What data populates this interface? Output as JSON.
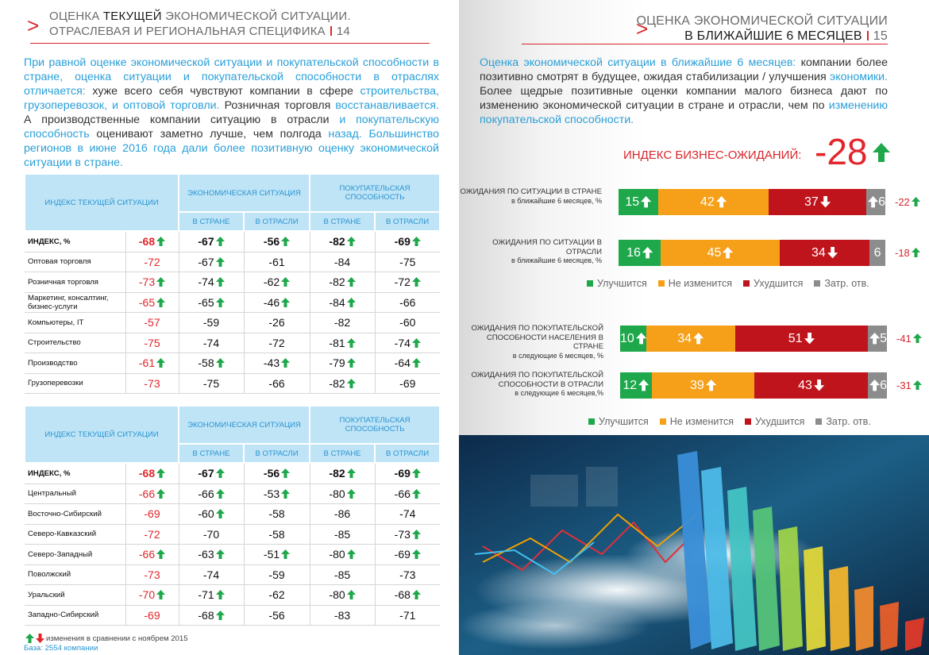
{
  "left_page": {
    "header": {
      "prefix": "ОЦЕНКА",
      "highlight": "ТЕКУЩЕЙ",
      "rest": "ЭКОНОМИЧЕСКОЙ СИТУАЦИИ.",
      "line2": "ОТРАСЛЕВАЯ И РЕГИОНАЛЬНАЯ СПЕЦИФИКА",
      "page_number": "14"
    },
    "intro": [
      {
        "text": "При равной оценке экономической ситуации и покупательской способности в стране, оценка ситуации и покупательской способности в отраслях отличается: ",
        "highlight": true
      },
      {
        "text": "хуже всего себя чувствуют компании в сфере ",
        "highlight": false
      },
      {
        "text": "строительства, грузоперевозок, и оптовой торговли. ",
        "highlight": true
      },
      {
        "text": "Розничная торговля ",
        "highlight": false
      },
      {
        "text": "восстанавливается. ",
        "highlight": true
      },
      {
        "text": " А производственные компании ситуацию в отрасли ",
        "highlight": false
      },
      {
        "text": "и покупательскую способность ",
        "highlight": true
      },
      {
        "text": "оценивают заметно лучше, чем полгода ",
        "highlight": false
      },
      {
        "text": "назад. Большинство регионов в июне 2016 года дали более позитивную оценку экономической ситуации в стране.",
        "highlight": true
      }
    ],
    "tables": [
      {
        "corner": "ИНДЕКС ТЕКУЩЕЙ СИТУАЦИИ",
        "groups": [
          "ЭКОНОМИЧЕСКАЯ СИТУАЦИЯ",
          "ПОКУПАТЕЛЬСКАЯ СПОСОБНОСТЬ"
        ],
        "subheaders": [
          "В СТРАНЕ",
          "В ОТРАСЛИ",
          "В СТРАНЕ",
          "В ОТРАСЛИ"
        ],
        "rows": [
          {
            "label": "ИНДЕКС, %",
            "values": [
              -68,
              -67,
              -56,
              -82,
              -69
            ],
            "arrows": [
              "up",
              "up",
              "up",
              "up",
              "up"
            ]
          },
          {
            "label": "Оптовая торговля",
            "values": [
              -72,
              -67,
              -61,
              -84,
              -75
            ],
            "arrows": [
              null,
              "up",
              null,
              null,
              null
            ]
          },
          {
            "label": "Розничная торговля",
            "values": [
              -73,
              -74,
              -62,
              -82,
              -72
            ],
            "arrows": [
              "up",
              "up",
              "up",
              "up",
              "up"
            ]
          },
          {
            "label": "Маркетинг, консалтинг, бизнес-услуги",
            "values": [
              -65,
              -65,
              -46,
              -84,
              -66
            ],
            "arrows": [
              "up",
              "up",
              "up",
              "up",
              null
            ]
          },
          {
            "label": "Компьютеры, IT",
            "values": [
              -57,
              -59,
              -26,
              -82,
              -60
            ],
            "arrows": [
              null,
              null,
              null,
              null,
              null
            ]
          },
          {
            "label": "Строительство",
            "values": [
              -75,
              -74,
              -72,
              -81,
              -74
            ],
            "arrows": [
              null,
              null,
              null,
              "up",
              "up"
            ]
          },
          {
            "label": "Производство",
            "values": [
              -61,
              -58,
              -43,
              -79,
              -64
            ],
            "arrows": [
              "up",
              "up",
              "up",
              "up",
              "up"
            ]
          },
          {
            "label": "Грузоперевозки",
            "values": [
              -73,
              -75,
              -66,
              -82,
              -69
            ],
            "arrows": [
              null,
              null,
              null,
              "up",
              null
            ]
          }
        ]
      },
      {
        "corner": "ИНДЕКС ТЕКУЩЕЙ СИТУАЦИИ",
        "groups": [
          "ЭКОНОМИЧЕСКАЯ СИТУАЦИЯ",
          "ПОКУПАТЕЛЬСКАЯ СПОСОБНОСТЬ"
        ],
        "subheaders": [
          "В СТРАНЕ",
          "В ОТРАСЛИ",
          "В СТРАНЕ",
          "В ОТРАСЛИ"
        ],
        "rows": [
          {
            "label": "ИНДЕКС, %",
            "values": [
              -68,
              -67,
              -56,
              -82,
              -69
            ],
            "arrows": [
              "up",
              "up",
              "up",
              "up",
              "up"
            ]
          },
          {
            "label": "Центральный",
            "values": [
              -66,
              -66,
              -53,
              -80,
              -66
            ],
            "arrows": [
              "up",
              "up",
              "up",
              "up",
              "up"
            ]
          },
          {
            "label": "Восточно-Сибирский",
            "values": [
              -69,
              -60,
              -58,
              -86,
              -74
            ],
            "arrows": [
              null,
              "up",
              null,
              null,
              null
            ]
          },
          {
            "label": "Северо-Кавказский",
            "values": [
              -72,
              -70,
              -58,
              -85,
              -73
            ],
            "arrows": [
              null,
              null,
              null,
              null,
              "up"
            ]
          },
          {
            "label": "Северо-Западный",
            "values": [
              -66,
              -63,
              -51,
              -80,
              -69
            ],
            "arrows": [
              "up",
              "up",
              "up",
              "up",
              "up"
            ]
          },
          {
            "label": "Поволжский",
            "values": [
              -73,
              -74,
              -59,
              -85,
              -73
            ],
            "arrows": [
              null,
              null,
              null,
              null,
              null
            ]
          },
          {
            "label": "Уральский",
            "values": [
              -70,
              -71,
              -62,
              -80,
              -68
            ],
            "arrows": [
              "up",
              "up",
              null,
              "up",
              "up"
            ]
          },
          {
            "label": "Западно-Сибирский",
            "values": [
              -69,
              -68,
              -56,
              -83,
              -71
            ],
            "arrows": [
              null,
              "up",
              null,
              null,
              null
            ]
          }
        ]
      }
    ],
    "footnote": {
      "legend": "изменения в сравнении с ноябрем 2015",
      "base": "База: 2554 компании"
    }
  },
  "right_page": {
    "header": {
      "line1": "ОЦЕНКА ЭКОНОМИЧЕСКОЙ СИТУАЦИИ",
      "line2": "В БЛИЖАЙШИЕ 6 МЕСЯЦЕВ",
      "page_number": "15"
    },
    "intro": [
      {
        "text": "Оценка экономической ситуации в ближайшие 6 месяцев: ",
        "highlight": true
      },
      {
        "text": "компании более позитивно смотрят в будущее, ожидая стабилизации / улучшения ",
        "highlight": false
      },
      {
        "text": "экономики. ",
        "highlight": true
      },
      {
        "text": "Более щедрые позитивные оценки компании малого бизнеса дают по изменению экономической ситуации в стране и отрасли, чем по ",
        "highlight": false
      },
      {
        "text": "изменению покупательской способности.",
        "highlight": true
      }
    ],
    "index": {
      "label": "ИНДЕКС БИЗНЕС-ОЖИДАНИЙ:",
      "value": -28,
      "arrow": "up"
    }
  },
  "chart_data": [
    {
      "type": "bar",
      "orientation": "horizontal",
      "stacked": true,
      "categories": [
        "ОЖИДАНИЯ ПО СИТУАЦИИ В СТРАНЕ",
        "ОЖИДАНИЯ ПО СИТУАЦИИ В ОТРАСЛИ"
      ],
      "category_notes": [
        "в ближайшие 6 месяцев, %",
        "в ближайшие 6 месяцев, %"
      ],
      "series": [
        {
          "name": "Улучшится",
          "color": "#1ea84b",
          "values": [
            15,
            16
          ],
          "arrows": [
            "up",
            "up"
          ]
        },
        {
          "name": "Не изменится",
          "color": "#f6a01a",
          "values": [
            42,
            45
          ],
          "arrows": [
            "up",
            "up"
          ]
        },
        {
          "name": "Ухудшится",
          "color": "#c0141c",
          "values": [
            37,
            34
          ],
          "arrows": [
            "down",
            "down"
          ]
        },
        {
          "name": "Затр. отв.",
          "color": "#8c8c8c",
          "values": [
            6,
            6
          ],
          "arrows": [
            "up",
            null
          ]
        }
      ],
      "index_values": [
        -22,
        -18
      ],
      "index_arrows": [
        "up",
        "up"
      ]
    },
    {
      "type": "bar",
      "orientation": "horizontal",
      "stacked": true,
      "categories": [
        "ОЖИДАНИЯ ПО ПОКУПАТЕЛЬСКОЙ СПОСОБНОСТИ НАСЕЛЕНИЯ В СТРАНЕ",
        "ОЖИДАНИЯ ПО ПОКУПАТЕЛЬСКОЙ СПОСОБНОСТИ В ОТРАСЛИ"
      ],
      "category_notes": [
        "в следующие 6 месяцев, %",
        "в следующие 6 месяцев,%"
      ],
      "series": [
        {
          "name": "Улучшится",
          "color": "#1ea84b",
          "values": [
            10,
            12
          ],
          "arrows": [
            "up",
            "up"
          ]
        },
        {
          "name": "Не изменится",
          "color": "#f6a01a",
          "values": [
            34,
            39
          ],
          "arrows": [
            "up",
            "up"
          ]
        },
        {
          "name": "Ухудшится",
          "color": "#c0141c",
          "values": [
            51,
            43
          ],
          "arrows": [
            "down",
            "down"
          ]
        },
        {
          "name": "Затр. отв.",
          "color": "#8c8c8c",
          "values": [
            5,
            6
          ],
          "arrows": [
            "up",
            "up"
          ]
        }
      ],
      "index_values": [
        -41,
        -31
      ],
      "index_arrows": [
        "up",
        "up"
      ]
    }
  ]
}
